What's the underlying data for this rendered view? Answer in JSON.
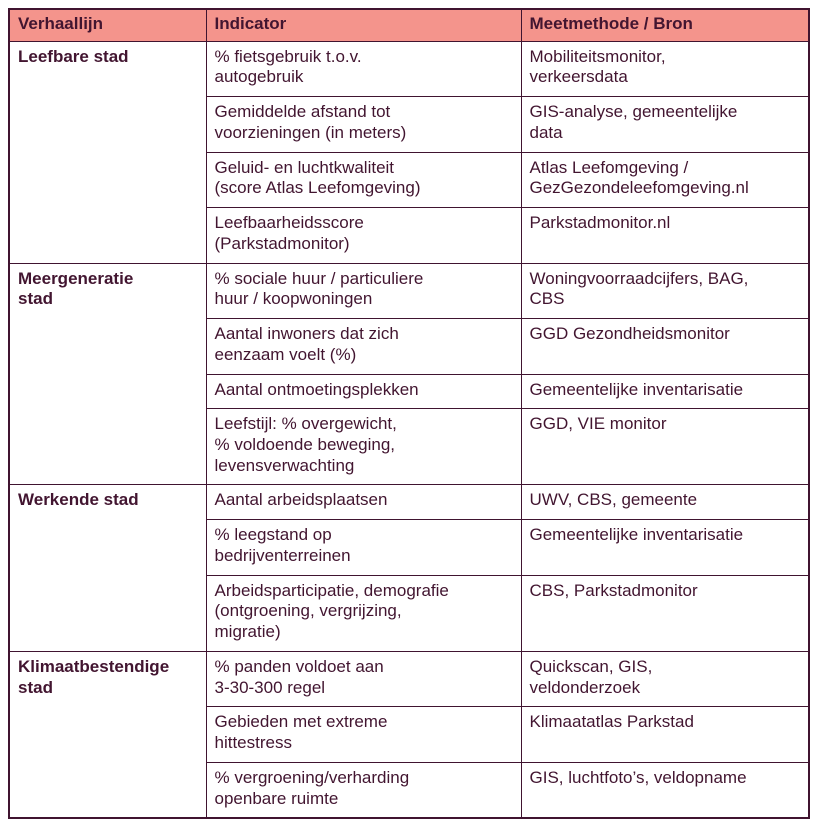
{
  "colors": {
    "header_bg": "#f4948c",
    "text": "#421530",
    "border": "#401430"
  },
  "table": {
    "headers": [
      "Verhaallijn",
      "Indicator",
      "Meetmethode / Bron"
    ],
    "groups": [
      {
        "verhaallijn": "Leefbare stad",
        "rows": [
          {
            "indicator": "% fietsgebruik t.o.v.\nautogebruik",
            "bron": "Mobiliteitsmonitor,\nverkeersdata"
          },
          {
            "indicator": "Gemiddelde afstand tot\nvoorzieningen (in meters)",
            "bron": "GIS-analyse, gemeentelijke\ndata"
          },
          {
            "indicator": "Geluid- en luchtkwaliteit\n(score Atlas Leefomgeving)",
            "bron": "Atlas Leefomgeving /\nGezGezondeleefomgeving.nl"
          },
          {
            "indicator": "Leefbaarheidsscore\n(Parkstadmonitor)",
            "bron": "Parkstadmonitor.nl"
          }
        ]
      },
      {
        "verhaallijn": "Meergeneratie\nstad",
        "rows": [
          {
            "indicator": "% sociale huur / particuliere\nhuur / koopwoningen",
            "bron": "Woningvoorraadcijfers, BAG,\nCBS"
          },
          {
            "indicator": "Aantal inwoners dat zich\neenzaam voelt (%)",
            "bron": "GGD Gezondheidsmonitor"
          },
          {
            "indicator": "Aantal ontmoetingsplekken",
            "bron": "Gemeentelijke inventarisatie"
          },
          {
            "indicator": "Leefstijl: % overgewicht,\n% voldoende beweging,\nlevensverwachting",
            "bron": "GGD, VIE monitor"
          }
        ]
      },
      {
        "verhaallijn": "Werkende stad",
        "rows": [
          {
            "indicator": "Aantal arbeidsplaatsen",
            "bron": "UWV, CBS, gemeente"
          },
          {
            "indicator": "% leegstand op\nbedrijventerreinen",
            "bron": "Gemeentelijke inventarisatie"
          },
          {
            "indicator": "Arbeidsparticipatie, demografie\n(ontgroening, vergrijzing,\nmigratie)",
            "bron": "CBS, Parkstadmonitor"
          }
        ]
      },
      {
        "verhaallijn": "Klimaatbestendige\nstad",
        "rows": [
          {
            "indicator": "% panden voldoet aan\n3-30-300 regel",
            "bron": "Quickscan, GIS,\nveldonderzoek"
          },
          {
            "indicator": "Gebieden met extreme\nhittestress",
            "bron": "Klimaatatlas Parkstad"
          },
          {
            "indicator": "% vergroening/verharding\nopenbare ruimte",
            "bron": "GIS, luchtfoto’s, veldopname"
          }
        ]
      }
    ]
  }
}
